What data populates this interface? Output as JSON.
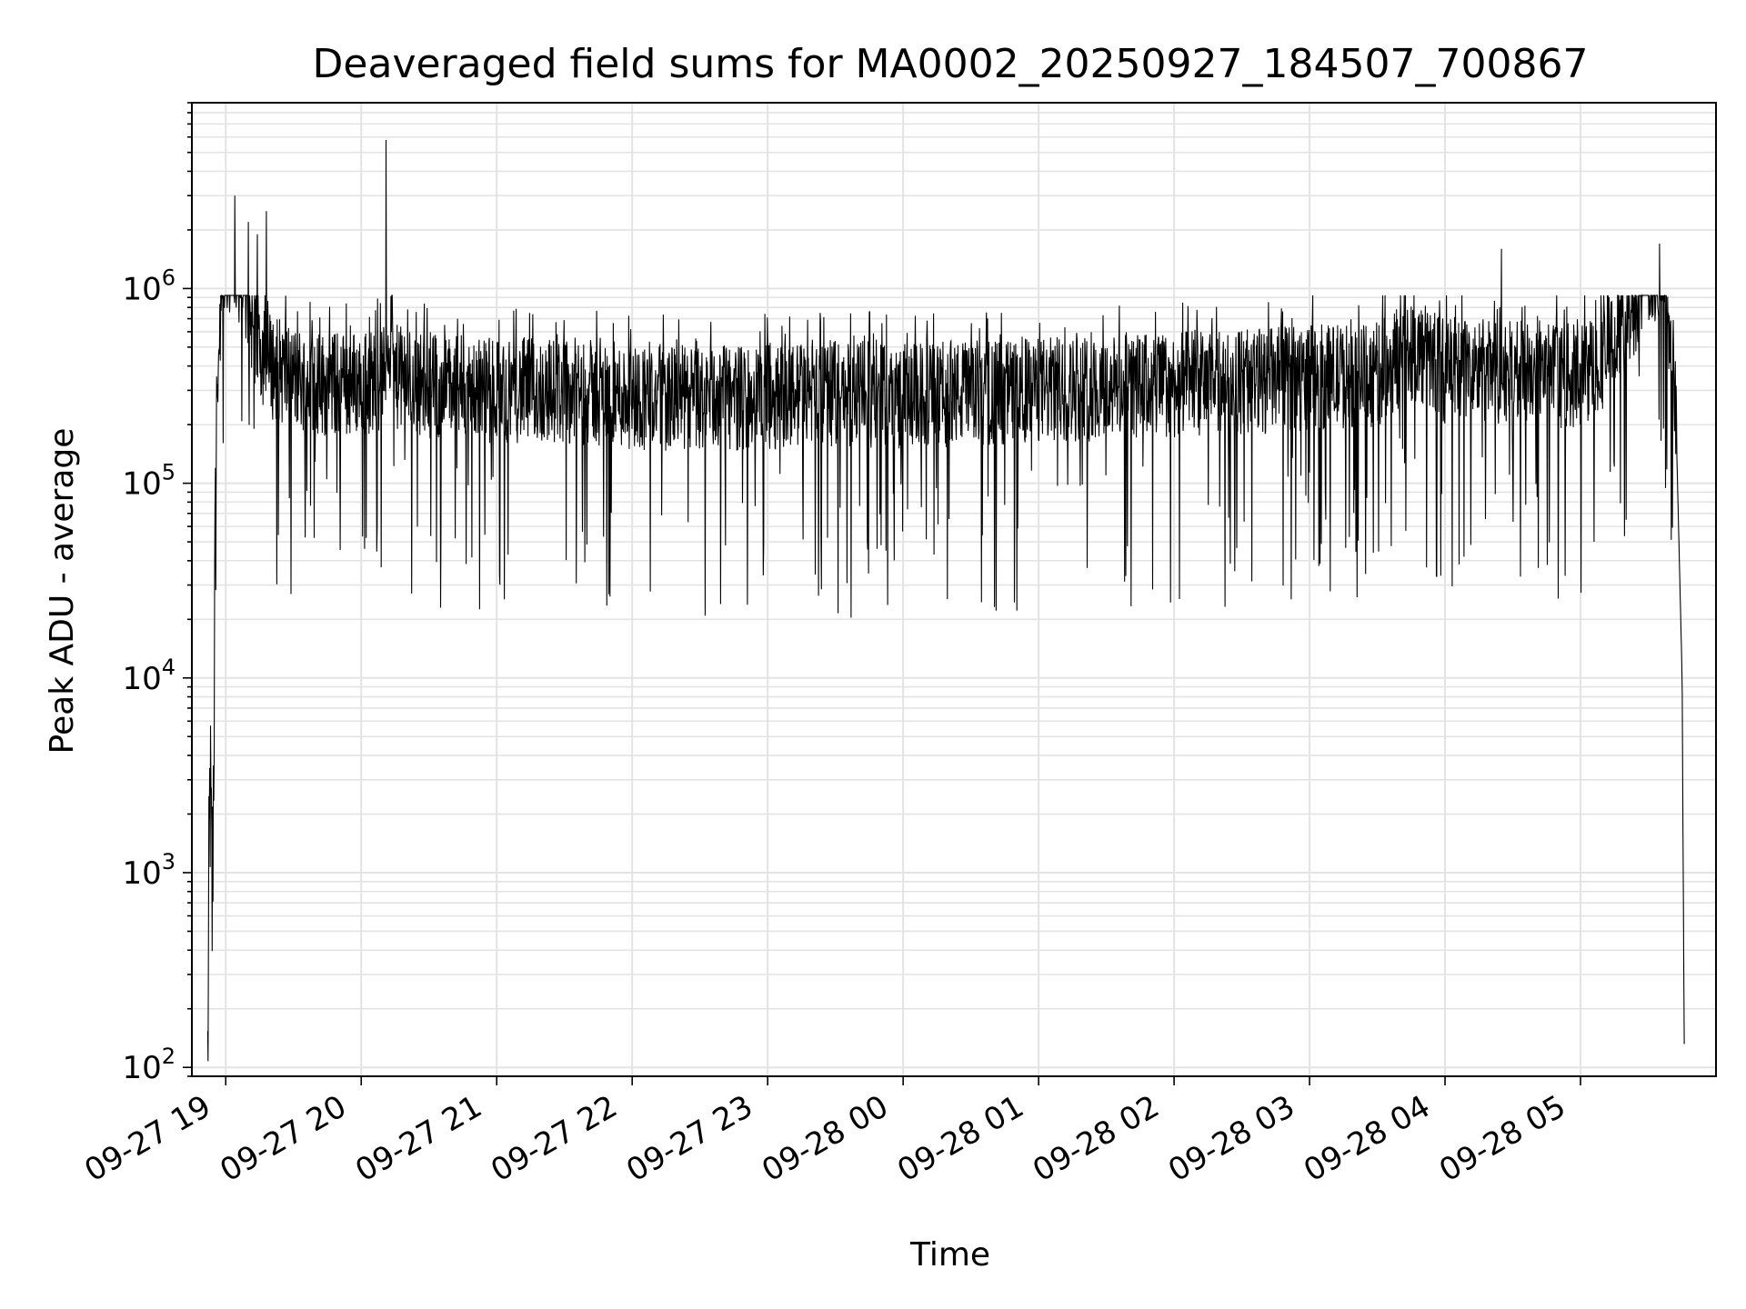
{
  "chart_data": {
    "type": "line",
    "title": "Deaveraged field sums for MA0002_20250927_184507_700867",
    "xlabel": "Time",
    "ylabel": "Peak ADU - average",
    "yscale": "log",
    "ylim": [
      90,
      9000000
    ],
    "xlim": [
      "09-27 18:45",
      "09-28 06:00"
    ],
    "x_ticks": [
      "09-27 19",
      "09-27 20",
      "09-27 21",
      "09-27 22",
      "09-27 23",
      "09-28 00",
      "09-28 01",
      "09-28 02",
      "09-28 03",
      "09-28 04",
      "09-28 05"
    ],
    "y_ticks": [
      {
        "value": 100,
        "base": "10",
        "exp": "2"
      },
      {
        "value": 1000,
        "base": "10",
        "exp": "3"
      },
      {
        "value": 10000,
        "base": "10",
        "exp": "4"
      },
      {
        "value": 100000,
        "base": "10",
        "exp": "5"
      },
      {
        "value": 1000000,
        "base": "10",
        "exp": "6"
      }
    ],
    "grid": true,
    "legend": "none",
    "line_color": "#000000",
    "series": [
      {
        "x": [
          "09-27 18:52",
          "09-27 18:53",
          "09-27 18:54",
          "09-27 18:55",
          "09-27 18:56",
          "09-27 18:58",
          "09-27 19:00",
          "09-27 19:03",
          "09-27 19:06",
          "09-27 19:10",
          "09-27 19:15",
          "09-27 19:20",
          "09-27 19:30",
          "09-27 19:45",
          "09-27 20:00",
          "09-27 20:10",
          "09-27 20:12",
          "09-27 20:15",
          "09-27 20:30",
          "09-27 21:00",
          "09-27 21:30",
          "09-27 22:00",
          "09-27 22:30",
          "09-27 23:00",
          "09-27 23:30",
          "09-28 00:00",
          "09-28 00:30",
          "09-28 01:00",
          "09-28 01:30",
          "09-28 02:00",
          "09-28 02:30",
          "09-28 03:00",
          "09-28 03:30",
          "09-28 03:45",
          "09-28 04:00",
          "09-28 04:30",
          "09-28 05:00",
          "09-28 05:10",
          "09-28 05:20",
          "09-28 05:30",
          "09-28 05:38",
          "09-28 05:42",
          "09-28 05:45",
          "09-28 05:46"
        ],
        "y": [
          100,
          3000,
          600,
          12000,
          300000,
          900000,
          1300000,
          1500000,
          1200000,
          800000,
          500000,
          400000,
          350000,
          320000,
          330000,
          350000,
          600000,
          350000,
          320000,
          300000,
          300000,
          280000,
          270000,
          280000,
          290000,
          280000,
          290000,
          300000,
          310000,
          320000,
          330000,
          350000,
          360000,
          500000,
          380000,
          370000,
          350000,
          450000,
          700000,
          1200000,
          1000000,
          300000,
          10000,
          100
        ]
      }
    ],
    "peaks": {
      "x": [
        "09-27 19:04",
        "09-27 19:10",
        "09-27 19:14",
        "09-27 19:18",
        "09-27 20:11",
        "09-28 04:25",
        "09-28 05:35"
      ],
      "y": [
        3000000,
        2200000,
        1900000,
        2500000,
        5800000,
        1600000,
        1700000
      ]
    },
    "noise": {
      "upper": 700000,
      "lower": 30000,
      "min_dip": 20000
    }
  }
}
